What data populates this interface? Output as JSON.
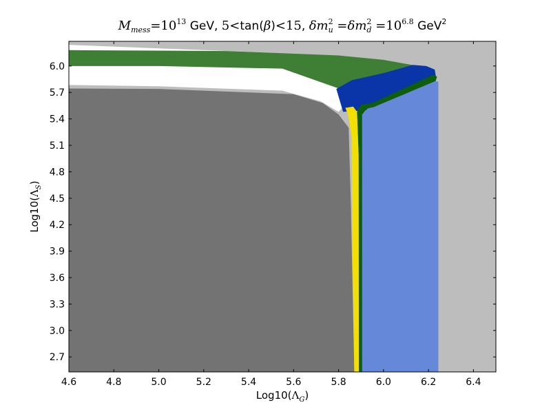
{
  "chart_data": {
    "type": "area",
    "title": {
      "mess_symbol": "M",
      "mess_sub": "mess",
      "eq1": "=10",
      "exp1": "13",
      "gev1": " GeV, ",
      "five": "5",
      "lt1": "<",
      "tan_word": "tan(",
      "beta": "β",
      "tan_close": ")",
      "lt2": "<",
      "fifteen": "15",
      "comma": ", ",
      "dmu": "δm",
      "dmu_sup": "2",
      "dmu_sub": "u",
      "eq2": " =",
      "dmd": "δm",
      "dmd_sup": "2",
      "dmd_sub": "d",
      "eq3": " =10",
      "exp2": "6.8",
      "gev2": " GeV",
      "gev2_sup": "2"
    },
    "xlabel": {
      "prefix": "Log10(",
      "symbol": "Λ",
      "sub": "G",
      "suffix": ")"
    },
    "ylabel": {
      "prefix": "Log10(",
      "symbol": "Λ",
      "sub": "S",
      "suffix": ")"
    },
    "xlim": [
      4.6,
      6.5
    ],
    "ylim": [
      2.53,
      6.28
    ],
    "xticks": [
      "4.6",
      "4.8",
      "5.0",
      "5.2",
      "5.4",
      "5.6",
      "5.8",
      "6.0",
      "6.2",
      "6.4"
    ],
    "yticks": [
      "2.7",
      "3.0",
      "3.3",
      "3.6",
      "3.9",
      "4.2",
      "4.5",
      "4.8",
      "5.1",
      "5.4",
      "5.7",
      "6.0"
    ],
    "colors": {
      "background_region": "#bdbdbd",
      "dark_gray_region": "#737373",
      "white_gap": "#ffffff",
      "green_region": "#3f7f35",
      "dark_blue_region": "#0a35a8",
      "light_blue_region": "#6688d8",
      "dark_green_band": "#0d5e0d",
      "yellow_band": "#f4e000"
    },
    "regions": [
      {
        "key": "white_gap",
        "points": [
          [
            4.6,
            6.24
          ],
          [
            5.5,
            6.15
          ],
          [
            5.85,
            6.05
          ],
          [
            6.13,
            5.9
          ],
          [
            6.2,
            5.88
          ],
          [
            5.85,
            5.62
          ],
          [
            5.8,
            5.48
          ],
          [
            5.72,
            5.6
          ],
          [
            5.55,
            5.72
          ],
          [
            5.0,
            5.77
          ],
          [
            4.6,
            5.785
          ]
        ]
      },
      {
        "key": "green_region",
        "points": [
          [
            4.6,
            6.18
          ],
          [
            5.3,
            6.17
          ],
          [
            5.8,
            6.12
          ],
          [
            6.0,
            6.07
          ],
          [
            6.13,
            6.01
          ],
          [
            6.21,
            5.98
          ],
          [
            6.233,
            5.88
          ],
          [
            5.895,
            5.66
          ],
          [
            5.79,
            5.755
          ],
          [
            5.55,
            5.97
          ],
          [
            5.0,
            6.0
          ],
          [
            4.6,
            6.0
          ]
        ]
      },
      {
        "key": "dark_blue_region",
        "points": [
          [
            6.13,
            6.012
          ],
          [
            6.19,
            6.0
          ],
          [
            6.228,
            5.96
          ],
          [
            6.233,
            5.88
          ],
          [
            6.0,
            5.535
          ],
          [
            5.945,
            5.502
          ],
          [
            5.82,
            5.48
          ],
          [
            5.79,
            5.74
          ],
          [
            5.86,
            5.84
          ],
          [
            6.0,
            5.92
          ]
        ]
      },
      {
        "key": "dark_gray_region",
        "points": [
          [
            4.6,
            2.53
          ],
          [
            5.87,
            2.53
          ],
          [
            5.855,
            4.4
          ],
          [
            5.845,
            5.3
          ],
          [
            5.8,
            5.45
          ],
          [
            5.73,
            5.58
          ],
          [
            5.6,
            5.68
          ],
          [
            5.0,
            5.74
          ],
          [
            4.6,
            5.745
          ]
        ]
      },
      {
        "key": "light_blue_region",
        "points": [
          [
            5.905,
            2.53
          ],
          [
            6.244,
            2.53
          ],
          [
            6.244,
            5.82
          ],
          [
            6.232,
            5.83
          ],
          [
            5.955,
            5.535
          ],
          [
            5.93,
            5.52
          ],
          [
            5.905,
            5.45
          ]
        ]
      },
      {
        "key": "dark_green_band",
        "points": [
          [
            5.89,
            2.53
          ],
          [
            5.905,
            2.53
          ],
          [
            5.905,
            5.45
          ],
          [
            5.928,
            5.52
          ],
          [
            5.957,
            5.535
          ],
          [
            6.232,
            5.83
          ],
          [
            6.238,
            5.88
          ],
          [
            6.22,
            5.9
          ],
          [
            5.95,
            5.58
          ],
          [
            5.9,
            5.56
          ],
          [
            5.882,
            5.48
          ],
          [
            5.889,
            5.0
          ]
        ]
      },
      {
        "key": "yellow_band",
        "points": [
          [
            5.87,
            2.53
          ],
          [
            5.89,
            2.53
          ],
          [
            5.889,
            5.0
          ],
          [
            5.882,
            5.48
          ],
          [
            5.865,
            5.54
          ],
          [
            5.83,
            5.525
          ],
          [
            5.842,
            5.45
          ],
          [
            5.858,
            5.2
          ],
          [
            5.861,
            4.0
          ]
        ]
      }
    ]
  }
}
